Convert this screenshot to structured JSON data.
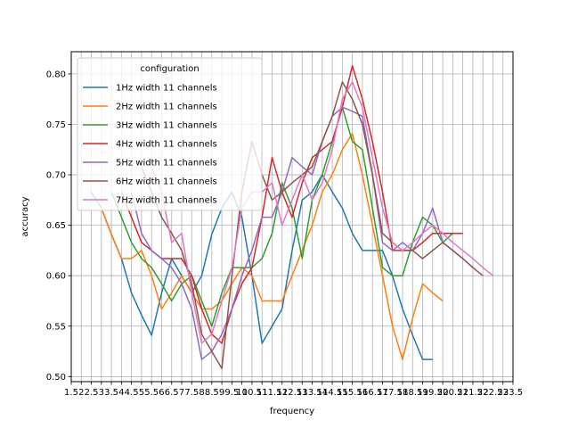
{
  "chart_data": {
    "type": "line",
    "xlabel": "frequency",
    "ylabel": "accuracy",
    "xlim": [
      1.5,
      23.5
    ],
    "ylim": [
      0.495,
      0.822
    ],
    "x_tick_labels": [
      "1.5",
      "2",
      "2.5",
      "3",
      "3.5",
      "4",
      "4.5",
      "5",
      "5.5",
      "6",
      "6.5",
      "7",
      "7.5",
      "8",
      "8.5",
      "9",
      "9.5",
      "10",
      "10.5",
      "11",
      "11.5",
      "12",
      "12.5",
      "13",
      "13.5",
      "14",
      "14.5",
      "15",
      "15.5",
      "16",
      "16.5",
      "17",
      "17.5",
      "18",
      "18.5",
      "19",
      "19.5",
      "20",
      "20.5",
      "21",
      "21.5",
      "22",
      "22.5",
      "23",
      "23.5"
    ],
    "y_ticks": [
      0.5,
      0.55,
      0.6,
      0.65,
      0.7,
      0.75,
      0.8
    ],
    "y_tick_labels": [
      "0.50",
      "0.55",
      "0.60",
      "0.65",
      "0.70",
      "0.75",
      "0.80"
    ],
    "grid": true,
    "legend": {
      "title": "configuration",
      "placement": "top-left"
    },
    "series": [
      {
        "name": "1Hz width 11 channels",
        "color": "#1f77b4",
        "x": [
          2.5,
          3,
          3.5,
          4,
          4.5,
          5,
          5.5,
          6,
          6.5,
          7,
          7.5,
          8,
          8.5,
          9,
          9.5,
          10,
          10.5,
          11,
          11.5,
          12,
          12.5,
          13,
          13.5,
          14,
          14.5,
          15,
          15.5,
          16,
          16.5,
          17,
          17.5,
          18,
          18.5,
          19,
          19.5
        ],
        "y": [
          0.683,
          0.667,
          0.641,
          0.617,
          0.583,
          0.561,
          0.541,
          0.583,
          0.617,
          0.6,
          0.583,
          0.6,
          0.641,
          0.667,
          0.683,
          0.658,
          0.6,
          0.533,
          0.55,
          0.567,
          0.625,
          0.675,
          0.683,
          0.7,
          0.683,
          0.667,
          0.642,
          0.625,
          0.625,
          0.625,
          0.6,
          0.567,
          0.541,
          0.517,
          0.517
        ]
      },
      {
        "name": "2Hz width 11 channels",
        "color": "#ff7f0e",
        "x": [
          3,
          3.5,
          4,
          4.5,
          5,
          5.5,
          6,
          6.5,
          7,
          7.5,
          8,
          8.5,
          9,
          9.5,
          10,
          10.5,
          11,
          11.5,
          12,
          12.5,
          13,
          13.5,
          14,
          14.5,
          15,
          15.5,
          16,
          16.5,
          17,
          17.5,
          18,
          18.5,
          19,
          19.5,
          20
        ],
        "y": [
          0.667,
          0.641,
          0.617,
          0.617,
          0.625,
          0.6,
          0.567,
          0.583,
          0.6,
          0.583,
          0.567,
          0.567,
          0.575,
          0.592,
          0.608,
          0.6,
          0.575,
          0.575,
          0.575,
          0.6,
          0.625,
          0.65,
          0.683,
          0.7,
          0.725,
          0.741,
          0.7,
          0.65,
          0.6,
          0.55,
          0.517,
          0.558,
          0.592,
          0.583,
          0.575
        ]
      },
      {
        "name": "3Hz width 11 channels",
        "color": "#2ca02c",
        "x": [
          3.5,
          4,
          4.5,
          5,
          5.5,
          6,
          6.5,
          7,
          7.5,
          8,
          8.5,
          9,
          9.5,
          10,
          10.5,
          11,
          11.5,
          12,
          12.5,
          13,
          13.5,
          14,
          14.5,
          15,
          15.5,
          16,
          16.5,
          17,
          17.5,
          18,
          18.5,
          19,
          19.5,
          20,
          20.5
        ],
        "y": [
          0.683,
          0.658,
          0.633,
          0.617,
          0.608,
          0.592,
          0.575,
          0.592,
          0.6,
          0.575,
          0.55,
          0.583,
          0.608,
          0.608,
          0.608,
          0.617,
          0.642,
          0.692,
          0.667,
          0.617,
          0.675,
          0.7,
          0.733,
          0.767,
          0.733,
          0.725,
          0.667,
          0.608,
          0.6,
          0.6,
          0.633,
          0.658,
          0.65,
          0.633,
          0.642
        ]
      },
      {
        "name": "4Hz width 11 channels",
        "color": "#d62728",
        "x": [
          4,
          4.5,
          5,
          5.5,
          6,
          6.5,
          7,
          7.5,
          8,
          8.5,
          9,
          9.5,
          10,
          10.5,
          11,
          11.5,
          12,
          12.5,
          13,
          13.5,
          14,
          14.5,
          15,
          15.5,
          16,
          16.5,
          17,
          17.5,
          18,
          18.5,
          19,
          19.5,
          20,
          20.5,
          21
        ],
        "y": [
          0.683,
          0.658,
          0.633,
          0.625,
          0.617,
          0.617,
          0.617,
          0.6,
          0.567,
          0.542,
          0.533,
          0.567,
          0.592,
          0.608,
          0.658,
          0.717,
          0.683,
          0.658,
          0.692,
          0.717,
          0.725,
          0.733,
          0.767,
          0.808,
          0.775,
          0.733,
          0.683,
          0.625,
          0.625,
          0.625,
          0.633,
          0.642,
          0.642,
          0.642,
          0.642
        ]
      },
      {
        "name": "5Hz width 11 channels",
        "color": "#9467bd",
        "x": [
          4.5,
          5,
          5.5,
          6,
          6.5,
          7,
          7.5,
          8,
          8.5,
          9,
          9.5,
          10,
          10.5,
          11,
          11.5,
          12,
          12.5,
          13,
          13.5,
          14,
          14.5,
          15,
          15.5,
          16,
          16.5,
          17,
          17.5,
          18,
          18.5,
          19,
          19.5,
          20,
          20.5,
          21,
          21.5
        ],
        "y": [
          0.683,
          0.642,
          0.625,
          0.617,
          0.608,
          0.592,
          0.567,
          0.517,
          0.525,
          0.542,
          0.567,
          0.6,
          0.625,
          0.658,
          0.658,
          0.683,
          0.717,
          0.708,
          0.7,
          0.733,
          0.758,
          0.767,
          0.763,
          0.758,
          0.7,
          0.633,
          0.625,
          0.633,
          0.625,
          0.642,
          0.667,
          0.633,
          0.625,
          0.617,
          0.608
        ]
      },
      {
        "name": "6Hz width 11 channels",
        "color": "#8c564b",
        "x": [
          5,
          5.5,
          6,
          6.5,
          7,
          7.5,
          8,
          8.5,
          9,
          9.5,
          10,
          10.5,
          11,
          11.5,
          12,
          12.5,
          13,
          13.5,
          14,
          14.5,
          15,
          15.5,
          16,
          16.5,
          17,
          17.5,
          18,
          18.5,
          19,
          19.5,
          20,
          20.5,
          21,
          21.5,
          22
        ],
        "y": [
          0.708,
          0.683,
          0.658,
          0.642,
          0.625,
          0.592,
          0.542,
          0.525,
          0.508,
          0.6,
          0.683,
          0.733,
          0.7,
          0.675,
          0.683,
          0.692,
          0.7,
          0.708,
          0.733,
          0.758,
          0.792,
          0.775,
          0.75,
          0.7,
          0.642,
          0.633,
          0.625,
          0.625,
          0.617,
          0.625,
          0.633,
          0.625,
          0.617,
          0.608,
          0.6
        ]
      },
      {
        "name": "7Hz width 11 channels",
        "color": "#e377c2",
        "x": [
          5.5,
          6,
          6.5,
          7,
          7.5,
          8,
          8.5,
          9,
          9.5,
          10,
          10.5,
          11,
          11.5,
          12,
          12.5,
          13,
          13.5,
          14,
          14.5,
          15,
          15.5,
          16,
          16.5,
          17,
          17.5,
          18,
          18.5,
          19,
          19.5,
          20,
          20.5,
          21,
          21.5,
          22,
          22.5
        ],
        "y": [
          0.708,
          0.683,
          0.633,
          0.642,
          0.583,
          0.533,
          0.542,
          0.575,
          0.608,
          0.667,
          0.683,
          0.683,
          0.692,
          0.65,
          0.675,
          0.7,
          0.675,
          0.692,
          0.725,
          0.775,
          0.792,
          0.767,
          0.717,
          0.667,
          0.633,
          0.625,
          0.633,
          0.642,
          0.65,
          0.642,
          0.633,
          0.625,
          0.617,
          0.608,
          0.6
        ]
      }
    ]
  }
}
